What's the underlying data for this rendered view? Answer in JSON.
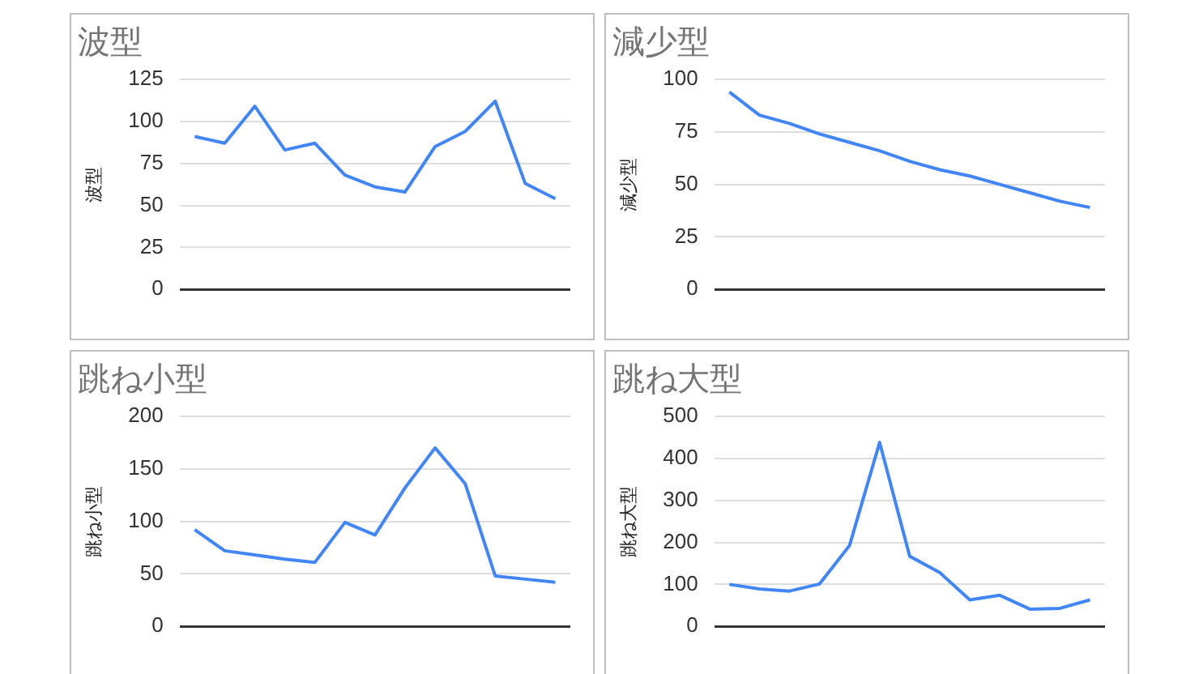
{
  "chart_data": [
    {
      "type": "line",
      "title": "波型",
      "ylabel": "波型",
      "categories": [
        null,
        null,
        null,
        null,
        null,
        null,
        null,
        null,
        null,
        null,
        null,
        null,
        null
      ],
      "series": [
        {
          "color": "#4285f4",
          "values": [
            91,
            87,
            109,
            83,
            87,
            68,
            61,
            58,
            85,
            94,
            112,
            63,
            54
          ]
        }
      ],
      "ylim": [
        0,
        125
      ],
      "yticks": [
        0,
        25,
        50,
        75,
        100,
        125
      ],
      "grid": "y"
    },
    {
      "type": "line",
      "title": "減少型",
      "ylabel": "減少型",
      "categories": [
        null,
        null,
        null,
        null,
        null,
        null,
        null,
        null,
        null,
        null,
        null,
        null,
        null
      ],
      "series": [
        {
          "color": "#4285f4",
          "values": [
            94,
            83,
            79,
            74,
            70,
            66,
            61,
            57,
            54,
            50,
            46,
            42,
            39
          ]
        }
      ],
      "ylim": [
        0,
        100
      ],
      "yticks": [
        0,
        25,
        50,
        75,
        100
      ],
      "grid": "y"
    },
    {
      "type": "line",
      "title": "跳ね小型",
      "ylabel": "跳ね小型",
      "categories": [
        null,
        null,
        null,
        null,
        null,
        null,
        null,
        null,
        null,
        null,
        null,
        null,
        null
      ],
      "series": [
        {
          "color": "#4285f4",
          "values": [
            92,
            72,
            68,
            64,
            61,
            99,
            87,
            132,
            170,
            136,
            48,
            45,
            42
          ]
        }
      ],
      "ylim": [
        0,
        200
      ],
      "yticks": [
        0,
        50,
        100,
        150,
        200
      ],
      "grid": "y"
    },
    {
      "type": "line",
      "title": "跳ね大型",
      "ylabel": "跳ね大型",
      "categories": [
        null,
        null,
        null,
        null,
        null,
        null,
        null,
        null,
        null,
        null,
        null,
        null,
        null
      ],
      "series": [
        {
          "color": "#4285f4",
          "values": [
            100,
            89,
            84,
            101,
            193,
            438,
            167,
            128,
            63,
            74,
            41,
            43,
            63
          ]
        }
      ],
      "ylim": [
        0,
        500
      ],
      "yticks": [
        0,
        100,
        200,
        300,
        400,
        500
      ],
      "grid": "y"
    }
  ]
}
